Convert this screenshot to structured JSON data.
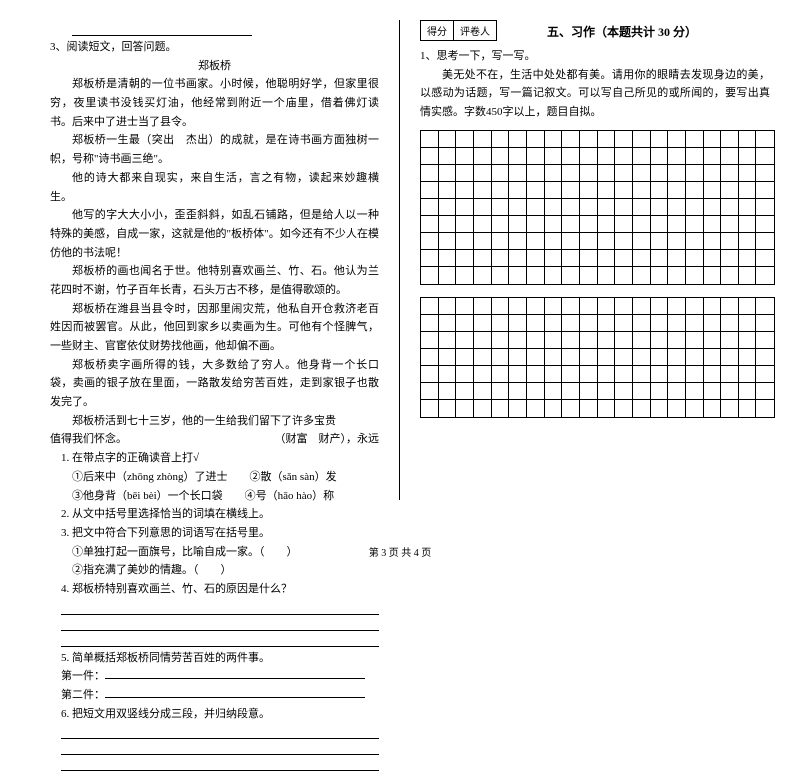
{
  "left": {
    "blank_line": " ",
    "q3_heading": "3、阅读短文，回答问题。",
    "article_title": "郑板桥",
    "para1": "郑板桥是清朝的一位书画家。小时候，他聪明好学，但家里很穷，夜里读书没钱买灯油，他经常到附近一个庙里，借着佛灯读书。后来中了进士当了县令。",
    "para2_text": "郑板桥一生最（突出　杰出）的成就，是在诗书画方面独树一帜，号称\"诗书画三绝\"。",
    "para3": "他的诗大都来自现实，来自生活，言之有物，读起来妙趣横生。",
    "para4": "他写的字大大小小，歪歪斜斜，如乱石铺路，但是给人以一种特殊的美感，自成一家，这就是他的\"板桥体\"。如今还有不少人在模仿他的书法呢！",
    "para5": "郑板桥的画也闻名于世。他特别喜欢画兰、竹、石。他认为兰花四时不谢，竹子百年长青，石头万古不移，是值得歌颂的。",
    "para6": "郑板桥在潍县当县令时，因那里闹灾荒，他私自开仓救济老百姓因而被罢官。从此，他回到家乡以卖画为生。可他有个怪脾气，一些财主、官宦依仗财势找他画，他却偏不画。",
    "para7": "郑板桥卖字画所得的钱，大多数给了穷人。他身背一个长口袋，卖画的银子放在里面，一路散发给穷苦百姓，走到家银子也散发完了。",
    "para8_a": "郑板桥活到七十三岁，他的一生给我们留下了许多宝贵",
    "para8_b": "（财富　财产），永远",
    "para8_c": "值得我们怀念。",
    "q1_heading": "1. 在带点字的正确读音上打√",
    "q1_line1": "①后来中（zhōng zhòng）了进士　　②散（sǎn sàn）发",
    "q1_line2": "③他身背（bēi bèi）一个长口袋　　④号（hāo hào）称",
    "q2": "2. 从文中括号里选择恰当的词填在横线上。",
    "q3": "3. 把文中符合下列意思的词语写在括号里。",
    "q3_a": "①单独打起一面旗号，比喻自成一家。（　　）",
    "q3_b": "②指充满了美妙的情趣。（　　）",
    "q4": "4. 郑板桥特别喜欢画兰、竹、石的原因是什么？",
    "q5": "5. 简单概括郑板桥同情劳苦百姓的两件事。",
    "q5_a": "第一件：",
    "q5_b": "第二件：",
    "q6": "6. 把短文用双竖线分成三段，并归纳段意。"
  },
  "right": {
    "score_label1": "得分",
    "score_label2": "评卷人",
    "section_title": "五、习作（本题共计 30 分）",
    "q1_heading": "1、思考一下，写一写。",
    "prompt": "美无处不在，生活中处处都有美。请用你的眼睛去发现身边的美，以感动为话题，写一篇记叙文。可以写自己所见的或所闻的，要写出真情实感。字数450字以上，题目自拟。",
    "grid": {
      "rows_block1": 9,
      "rows_block2": 7,
      "cols": 20,
      "cell_border_color": "#000000",
      "background": "#ffffff"
    }
  },
  "footer": "第 3 页 共 4 页"
}
